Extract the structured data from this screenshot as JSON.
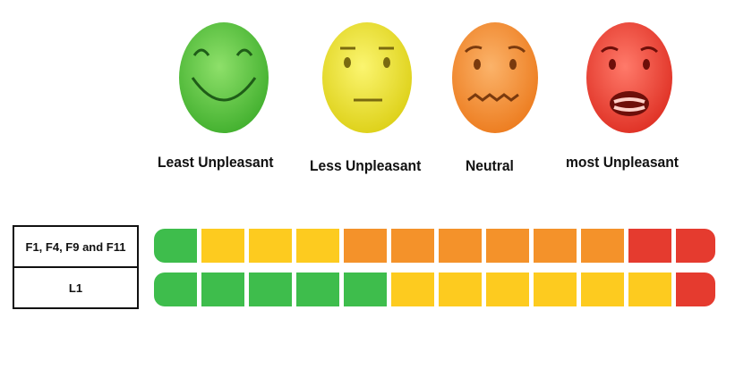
{
  "faces": [
    {
      "label": "Least Unpleasant",
      "color": "#57c53c",
      "icon": "happy-face-icon"
    },
    {
      "label": "Less Unpleasant",
      "color": "#eae22a",
      "icon": "neutral-face-icon"
    },
    {
      "label": "Neutral",
      "color": "#f28d2a",
      "icon": "worried-face-icon"
    },
    {
      "label": "most Unpleasant",
      "color": "#ea3b2d",
      "icon": "distressed-face-icon"
    }
  ],
  "rows": [
    {
      "label": "F1, F4, F9 and F11",
      "segments": [
        "green",
        "yellow",
        "yellow",
        "yellow",
        "orange",
        "orange",
        "orange",
        "orange",
        "orange",
        "orange",
        "red",
        "red"
      ]
    },
    {
      "label": "L1",
      "segments": [
        "green",
        "green",
        "green",
        "green",
        "green",
        "yellow",
        "yellow",
        "yellow",
        "yellow",
        "yellow",
        "yellow",
        "red"
      ]
    }
  ],
  "colors": {
    "green": "#3ebd4c",
    "yellow": "#fdcb1f",
    "orange": "#f4922a",
    "red": "#e53b2f"
  }
}
